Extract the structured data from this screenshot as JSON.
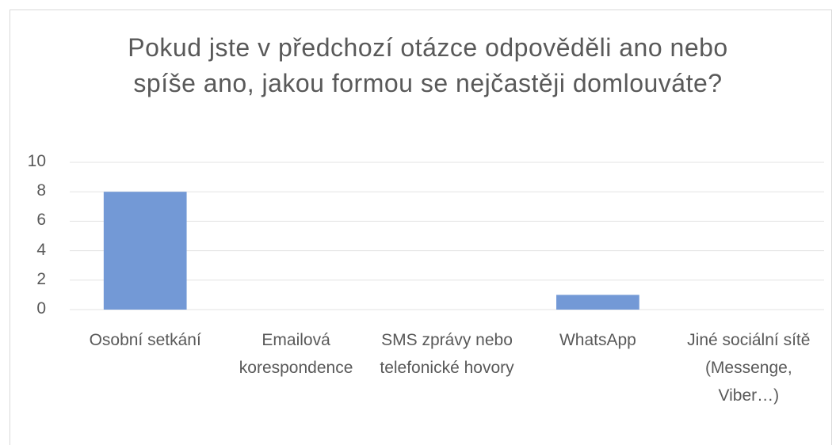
{
  "chart_data": {
    "type": "bar",
    "title": "Pokud jste v předchozí otázce odpověděli ano nebo spíše ano, jakou formou se nejčastěji domlouváte?",
    "categories": [
      "Osobní setkání",
      "Emailová korespondence",
      "SMS zprávy nebo telefonické hovory",
      "WhatsApp",
      "Jiné sociální sítě (Messenge, Viber…)"
    ],
    "values": [
      8,
      0,
      0,
      1,
      0
    ],
    "color": "#7399d6",
    "ylim": [
      0,
      10
    ],
    "yticks": [
      0,
      2,
      4,
      6,
      8,
      10
    ],
    "grid": true
  }
}
